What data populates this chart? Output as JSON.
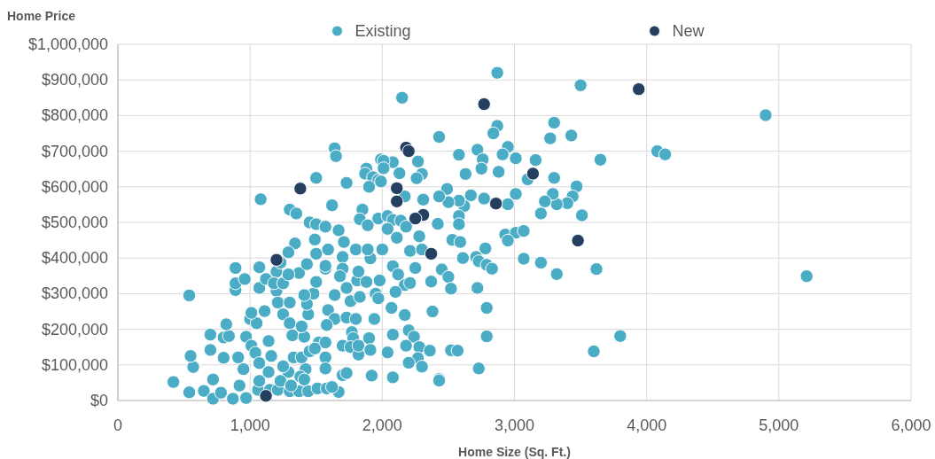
{
  "chart_data": {
    "type": "scatter",
    "xlabel": "Home Size (Sq. Ft.)",
    "ylabel": "Home Price",
    "legend": "top",
    "grid": true,
    "marker": "circle",
    "xlim": [
      0,
      6000
    ],
    "ylim": [
      0,
      1000000
    ],
    "xticks": [
      0,
      {
        "value": 1000,
        "label": "1,000"
      },
      {
        "value": 2000,
        "label": "2,000"
      },
      {
        "value": 3000,
        "label": "3,000"
      },
      {
        "value": 4000,
        "label": "4,000"
      },
      {
        "value": 5000,
        "label": "5,000"
      },
      {
        "value": 6000,
        "label": "6,000"
      }
    ],
    "yticks": [
      {
        "value": 0,
        "label": "$0"
      },
      {
        "value": 100000,
        "label": "$100,000"
      },
      {
        "value": 200000,
        "label": "$200,000"
      },
      {
        "value": 300000,
        "label": "$300,000"
      },
      {
        "value": 400000,
        "label": "$400,000"
      },
      {
        "value": 500000,
        "label": "$500,000"
      },
      {
        "value": 600000,
        "label": "$600,000"
      },
      {
        "value": 700000,
        "label": "$700,000"
      },
      {
        "value": 800000,
        "label": "$800,000"
      },
      {
        "value": 900000,
        "label": "$900,000"
      },
      {
        "value": 1000000,
        "label": "$1,000,000"
      }
    ],
    "series": [
      {
        "name": "Existing",
        "color": "#4bacc6",
        "x": [
          1640,
          1650,
          1500,
          1730,
          1080,
          1300,
          1350,
          1620,
          1880,
          1870,
          1930,
          1970,
          1900,
          1990,
          1850,
          1830,
          1890,
          1970,
          1450,
          1500,
          1570,
          1670,
          2870,
          3500,
          2150,
          3300,
          2870,
          2840,
          3270,
          3430,
          2430,
          3650,
          2580,
          2720,
          2760,
          2750,
          2630,
          2880,
          2950,
          2910,
          3010,
          3160,
          3300,
          3100,
          3470,
          3440,
          3400,
          3320,
          3290,
          3230,
          3200,
          3510,
          3010,
          2950,
          2770,
          2670,
          2620,
          2580,
          2500,
          2490,
          2430,
          2310,
          2580,
          2420,
          2580,
          2270,
          2300,
          2260,
          2130,
          2080,
          2010,
          2010,
          1990,
          2170,
          2040,
          2080,
          2140,
          2180,
          2040,
          2110,
          2280,
          2210,
          2300,
          2000,
          2530,
          2590,
          2930,
          3010,
          3070,
          2950,
          2780,
          2710,
          2730,
          2790,
          2830,
          2610,
          3070,
          3200,
          3320,
          3620,
          2080,
          2120,
          2250,
          2170,
          2210,
          2100,
          2370,
          2450,
          2500,
          2520,
          2720,
          2790,
          2380,
          2070,
          2170,
          2080,
          2200,
          2240,
          2040,
          2180,
          2280,
          2360,
          2520,
          2570,
          2790,
          2270,
          2200,
          2300,
          2730,
          2080,
          2430,
          2430,
          3600,
          3800,
          4900,
          4080,
          4140,
          5210,
          540,
          420,
          540,
          570,
          550,
          650,
          700,
          700,
          720,
          720,
          780,
          800,
          800,
          840,
          820,
          870,
          890,
          890,
          890,
          960,
          970,
          970,
          910,
          950,
          920,
          1000,
          1050,
          1010,
          1070,
          1070,
          1120,
          1110,
          1060,
          1010,
          1040,
          1070,
          1070,
          1140,
          1160,
          1140,
          1150,
          1210,
          1200,
          1200,
          1180,
          1210,
          1250,
          1230,
          1250,
          1300,
          1340,
          1290,
          1370,
          1430,
          1300,
          1320,
          1330,
          1290,
          1300,
          1370,
          1440,
          1510,
          1580,
          1670,
          1700,
          1730,
          1920,
          1420,
          1390,
          1450,
          1520,
          1570,
          1570,
          1410,
          1390,
          1440,
          1430,
          1480,
          1410,
          1500,
          1570,
          1500,
          1490,
          1710,
          1590,
          1700,
          1700,
          1680,
          1730,
          1640,
          1590,
          1640,
          1580,
          1760,
          1730,
          1800,
          1830,
          1810,
          1880,
          1820,
          1800,
          1910,
          1890,
          1770,
          1780,
          1700,
          1760,
          1820,
          1820,
          1900,
          1910,
          1940,
          1950,
          1980,
          1970,
          1570,
          1490,
          1380,
          1410,
          1250,
          1230,
          1310,
          1620,
          1570,
          1290
        ],
        "values": [
          708000,
          686000,
          625000,
          611000,
          565000,
          536000,
          525000,
          548000,
          651000,
          637000,
          627000,
          619000,
          600000,
          677000,
          536000,
          509000,
          492000,
          511000,
          500000,
          495000,
          488000,
          478000,
          920000,
          885000,
          850000,
          780000,
          771000,
          750000,
          736000,
          744000,
          740000,
          676000,
          690000,
          704000,
          677000,
          651000,
          636000,
          642000,
          712000,
          691000,
          680000,
          675000,
          625000,
          621000,
          601000,
          573000,
          554000,
          551000,
          580000,
          559000,
          525000,
          520000,
          580000,
          551000,
          567000,
          576000,
          546000,
          561000,
          557000,
          594000,
          573000,
          564000,
          518000,
          496000,
          495000,
          671000,
          636000,
          624000,
          638000,
          669000,
          673000,
          652000,
          615000,
          573000,
          518000,
          507000,
          505000,
          488000,
          482000,
          457000,
          461000,
          420000,
          424000,
          424000,
          451000,
          445000,
          466000,
          471000,
          476000,
          449000,
          427000,
          403000,
          391000,
          381000,
          370000,
          400000,
          398000,
          387000,
          355000,
          369000,
          377000,
          354000,
          372000,
          324000,
          330000,
          305000,
          334000,
          368000,
          347000,
          314000,
          316000,
          260000,
          250000,
          260000,
          240000,
          185000,
          197000,
          179000,
          135000,
          154000,
          150000,
          140000,
          141000,
          140000,
          180000,
          119000,
          106000,
          95000,
          90000,
          65000,
          60000,
          56000,
          138000,
          181000,
          801000,
          700000,
          691000,
          349000,
          295000,
          52000,
          23000,
          94000,
          125000,
          27000,
          142000,
          185000,
          5000,
          59000,
          22000,
          120000,
          177000,
          181000,
          214000,
          5000,
          372000,
          310000,
          329000,
          341000,
          7000,
          179000,
          121000,
          88000,
          42000,
          229000,
          217000,
          246000,
          316000,
          374000,
          341000,
          251000,
          30000,
          154000,
          134000,
          105000,
          55000,
          167000,
          125000,
          80000,
          30000,
          30000,
          308000,
          362000,
          329000,
          275000,
          329000,
          387000,
          242000,
          275000,
          441000,
          416000,
          358000,
          383000,
          217000,
          183000,
          121000,
          80000,
          26000,
          26000,
          26000,
          34000,
          34000,
          24000,
          71000,
          77000,
          70000,
          88000,
          121000,
          138000,
          163000,
          121000,
          90000,
          179000,
          208000,
          242000,
          271000,
          300000,
          296000,
          333000,
          370000,
          412000,
          452000,
          445000,
          424000,
          403000,
          370000,
          349000,
          316000,
          296000,
          254000,
          229000,
          212000,
          279000,
          233000,
          229000,
          291000,
          337000,
          333000,
          362000,
          424000,
          399000,
          424000,
          192000,
          175000,
          154000,
          150000,
          129000,
          154000,
          175000,
          142000,
          229000,
          300000,
          337000,
          287000,
          163000,
          146000,
          67000,
          59000,
          96000,
          55000,
          42000,
          38000,
          378000,
          354000
        ]
      },
      {
        "name": "New",
        "color": "#243f60",
        "x": [
          1380,
          2180,
          2200,
          2770,
          3940,
          3140,
          2110,
          2110,
          2860,
          2310,
          2250,
          3480,
          2370,
          1200,
          1120
        ],
        "values": [
          595000,
          710000,
          700000,
          832000,
          874000,
          637000,
          596000,
          559000,
          553000,
          521000,
          511000,
          449000,
          412000,
          395000,
          13000
        ]
      }
    ]
  }
}
